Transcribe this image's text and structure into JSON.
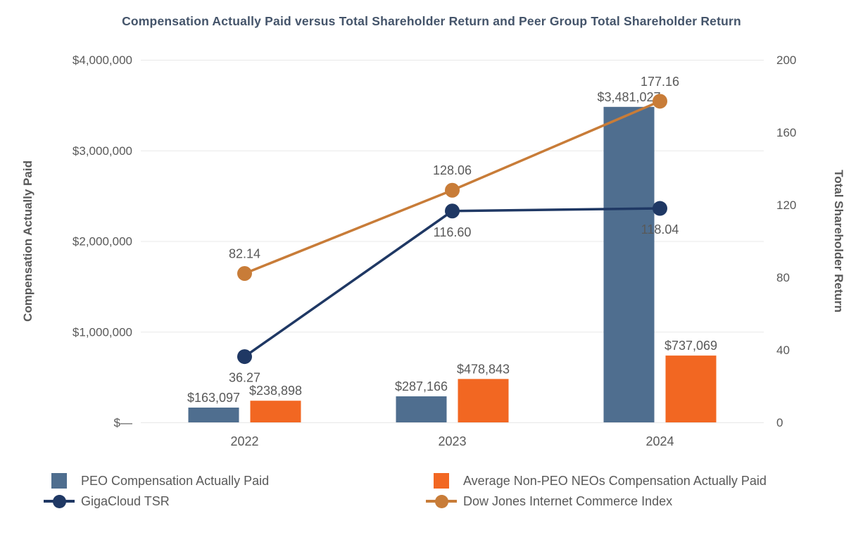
{
  "title": "Compensation Actually Paid versus Total Shareholder Return and Peer Group Total Shareholder Return",
  "colors": {
    "peo_bar": "#4f6e8f",
    "neo_bar": "#f26722",
    "gigacloud_line": "#1f3864",
    "dow_line": "#c87c38",
    "grid": "#e8e8e8",
    "axis_text": "#595959",
    "title_text": "#44546a"
  },
  "chart_data": {
    "type": "bar",
    "subtype": "combo-bar-line-dual-axis",
    "categories": [
      "2022",
      "2023",
      "2024"
    ],
    "bar_series": [
      {
        "name": "PEO Compensation Actually Paid",
        "axis": "left",
        "color_key": "peo_bar",
        "values": [
          163097,
          287166,
          3481027
        ],
        "labels": [
          "$163,097",
          "$287,166",
          "$3,481,027"
        ]
      },
      {
        "name": "Average Non-PEO NEOs Compensation Actually Paid",
        "axis": "left",
        "color_key": "neo_bar",
        "values": [
          238898,
          478843,
          737069
        ],
        "labels": [
          "$238,898",
          "$478,843",
          "$737,069"
        ]
      }
    ],
    "line_series": [
      {
        "name": "GigaCloud TSR",
        "axis": "right",
        "color_key": "gigacloud_line",
        "values": [
          36.27,
          116.6,
          118.04
        ],
        "labels": [
          "36.27",
          "116.60",
          "118.04"
        ],
        "label_side": "below"
      },
      {
        "name": "Dow Jones Internet Commerce Index",
        "axis": "right",
        "color_key": "dow_line",
        "values": [
          82.14,
          128.06,
          177.16
        ],
        "labels": [
          "82.14",
          "128.06",
          "177.16"
        ],
        "label_side": "above"
      }
    ],
    "left_axis": {
      "title": "Compensation Actually Paid",
      "min": 0,
      "max": 4000000,
      "ticks": [
        "$—",
        "$1,000,000",
        "$2,000,000",
        "$3,000,000",
        "$4,000,000"
      ],
      "tick_values": [
        0,
        1000000,
        2000000,
        3000000,
        4000000
      ]
    },
    "right_axis": {
      "title": "Total Shareholder Return",
      "min": 0,
      "max": 200,
      "ticks": [
        "0",
        "40",
        "80",
        "120",
        "160",
        "200"
      ],
      "tick_values": [
        0,
        40,
        80,
        120,
        160,
        200
      ]
    },
    "grid": true,
    "legend_position": "bottom"
  },
  "legend": {
    "items": [
      {
        "label": "PEO Compensation Actually Paid",
        "marker": "square",
        "color_key": "peo_bar"
      },
      {
        "label": "Average Non-PEO NEOs Compensation Actually Paid",
        "marker": "square",
        "color_key": "neo_bar"
      },
      {
        "label": "GigaCloud TSR",
        "marker": "line-dot",
        "color_key": "gigacloud_line"
      },
      {
        "label": "Dow Jones Internet Commerce Index",
        "marker": "line-dot",
        "color_key": "dow_line"
      }
    ]
  }
}
